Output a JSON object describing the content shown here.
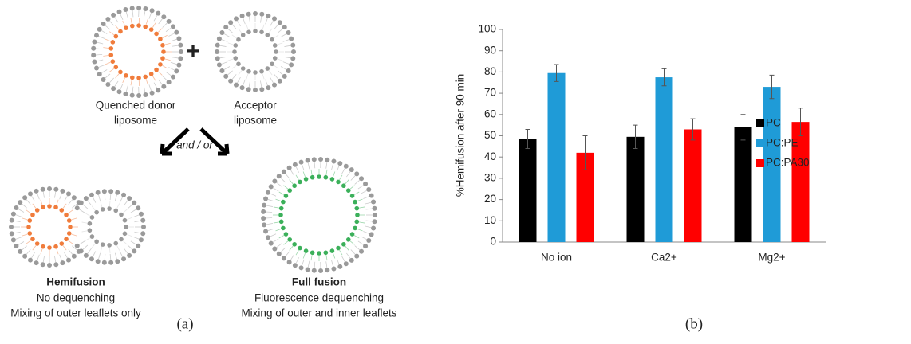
{
  "diagram": {
    "donor": [
      "Quenched donor",
      "liposome"
    ],
    "acceptor": [
      "Acceptor",
      "liposome"
    ],
    "connector": "and / or",
    "hemifusion": {
      "title": "Hemifusion",
      "lines": [
        "No dequenching",
        "Mixing of outer leaflets only"
      ]
    },
    "full_fusion": {
      "title": "Full fusion",
      "lines": [
        "Fluorescence dequenching",
        "Mixing of outer and inner leaflets"
      ]
    },
    "panel_label": "(a)"
  },
  "chart_data": {
    "type": "bar",
    "panel_label": "(b)",
    "y_label": "%Hemifusion after 90 min",
    "categories": [
      "No ion",
      "Ca2+",
      "Mg2+"
    ],
    "series": [
      {
        "name": "PC",
        "color": "#000000",
        "values": [
          48.5,
          49.5,
          54
        ],
        "errors": [
          4.5,
          5.5,
          6
        ]
      },
      {
        "name": "PC:PE",
        "color": "#1f9bd7",
        "values": [
          79.5,
          77.5,
          73
        ],
        "errors": [
          4,
          4,
          5.5
        ]
      },
      {
        "name": "PC:PA30",
        "color": "#ff0000",
        "values": [
          42,
          53,
          56.5
        ],
        "errors": [
          8,
          5,
          6.5
        ]
      }
    ],
    "ylim": [
      0,
      100
    ],
    "yticks": [
      0,
      10,
      20,
      30,
      40,
      50,
      60,
      70,
      80,
      90,
      100
    ],
    "legend": "right"
  }
}
